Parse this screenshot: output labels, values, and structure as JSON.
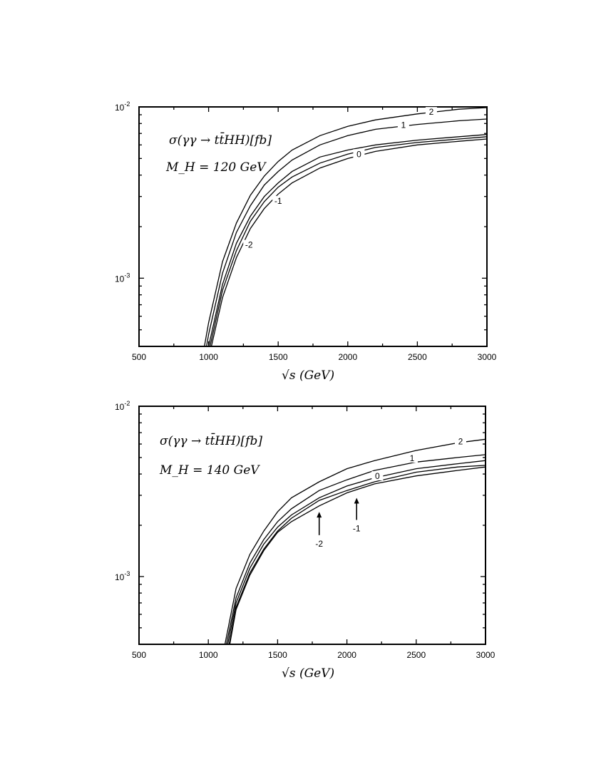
{
  "chart_data": [
    {
      "type": "line",
      "title": "",
      "xlabel": "√s (GeV)",
      "ylabel": "",
      "xlim": [
        500,
        3000
      ],
      "ylim": [
        0.0004,
        0.01
      ],
      "yscale": "log",
      "grid": false,
      "xticks": [
        "500",
        "1000",
        "1500",
        "2000",
        "2500",
        "3000"
      ],
      "yticks": [
        {
          "base": "10",
          "exp": "-2",
          "value": 0.01
        },
        {
          "base": "10",
          "exp": "-3",
          "value": 0.001
        }
      ],
      "annotations": [
        "σ(γγ → tt̄HH)[fb]",
        "M_H = 120 GeV"
      ],
      "series": [
        {
          "name": "2",
          "label_at": [
            2600,
            0.00925
          ],
          "x": [
            970,
            1000,
            1100,
            1200,
            1300,
            1400,
            1500,
            1600,
            1800,
            2000,
            2200,
            2500,
            2800,
            3000
          ],
          "y": [
            0.0004,
            0.00055,
            0.00125,
            0.0021,
            0.00305,
            0.00395,
            0.0048,
            0.0056,
            0.0068,
            0.0077,
            0.0084,
            0.0091,
            0.0097,
            0.0099
          ]
        },
        {
          "name": "1",
          "label_at": [
            2400,
            0.00775
          ],
          "x": [
            985,
            1000,
            1100,
            1200,
            1300,
            1400,
            1500,
            1600,
            1800,
            2000,
            2200,
            2500,
            2800,
            3000
          ],
          "y": [
            0.0004,
            0.00047,
            0.00107,
            0.00185,
            0.00265,
            0.0035,
            0.0042,
            0.0049,
            0.006,
            0.0068,
            0.0074,
            0.0079,
            0.0083,
            0.0085
          ]
        },
        {
          "name": "0",
          "label_at": [
            2080,
            0.00525
          ],
          "x": [
            1000,
            1100,
            1200,
            1300,
            1400,
            1500,
            1600,
            1800,
            2000,
            2200,
            2500,
            2800,
            3000
          ],
          "y": [
            0.0004,
            0.00092,
            0.0016,
            0.0023,
            0.003,
            0.0036,
            0.0042,
            0.0051,
            0.0056,
            0.006,
            0.0064,
            0.0067,
            0.0069
          ]
        },
        {
          "name": "-1",
          "label_at": [
            1500,
            0.0028
          ],
          "x": [
            1010,
            1100,
            1200,
            1300,
            1400,
            1500,
            1600,
            1800,
            2000,
            2200,
            2500,
            2800,
            3000
          ],
          "y": [
            0.0004,
            0.00085,
            0.00145,
            0.00215,
            0.0028,
            0.0034,
            0.0039,
            0.0047,
            0.0053,
            0.0058,
            0.0062,
            0.0065,
            0.0067
          ]
        },
        {
          "name": "-2",
          "label_at": [
            1290,
            0.00155
          ],
          "x": [
            1020,
            1100,
            1200,
            1300,
            1400,
            1500,
            1600,
            1800,
            2000,
            2200,
            2500,
            2800,
            3000
          ],
          "y": [
            0.0004,
            0.00077,
            0.00132,
            0.00195,
            0.00255,
            0.0031,
            0.0036,
            0.0044,
            0.005,
            0.0055,
            0.006,
            0.0063,
            0.0065
          ]
        }
      ]
    },
    {
      "type": "line",
      "title": "",
      "xlabel": "√s (GeV)",
      "ylabel": "",
      "xlim": [
        500,
        3000
      ],
      "ylim": [
        0.0004,
        0.01
      ],
      "yscale": "log",
      "grid": false,
      "xticks": [
        "500",
        "1000",
        "1500",
        "2000",
        "2500",
        "3000"
      ],
      "yticks": [
        {
          "base": "10",
          "exp": "-2",
          "value": 0.01
        },
        {
          "base": "10",
          "exp": "-3",
          "value": 0.001
        }
      ],
      "annotations": [
        "σ(γγ → tt̄HH)[fb]",
        "M_H = 140 GeV"
      ],
      "arrows": [
        {
          "label": "-2",
          "x": 1800,
          "y_tip": 0.0024,
          "y_tail": 0.00175
        },
        {
          "label": "-1",
          "x": 2070,
          "y_tip": 0.0029,
          "y_tail": 0.00215
        }
      ],
      "series": [
        {
          "name": "2",
          "label_at": [
            2820,
            0.00615
          ],
          "x": [
            1120,
            1200,
            1300,
            1400,
            1500,
            1600,
            1800,
            2000,
            2200,
            2500,
            2800,
            3000
          ],
          "y": [
            0.0004,
            0.00085,
            0.00135,
            0.00185,
            0.0024,
            0.0029,
            0.0036,
            0.0043,
            0.0048,
            0.0055,
            0.0061,
            0.0064
          ]
        },
        {
          "name": "1",
          "label_at": [
            2470,
            0.0049
          ],
          "x": [
            1130,
            1200,
            1300,
            1400,
            1500,
            1600,
            1800,
            2000,
            2200,
            2500,
            2800,
            3000
          ],
          "y": [
            0.0004,
            0.00075,
            0.0012,
            0.00165,
            0.0021,
            0.0025,
            0.0032,
            0.0037,
            0.0042,
            0.0047,
            0.005,
            0.0052
          ]
        },
        {
          "name": "0",
          "label_at": [
            2220,
            0.00385
          ],
          "x": [
            1140,
            1200,
            1300,
            1400,
            1500,
            1600,
            1800,
            2000,
            2200,
            2500,
            2800,
            3000
          ],
          "y": [
            0.0004,
            0.0007,
            0.00112,
            0.00155,
            0.00195,
            0.0023,
            0.0029,
            0.0034,
            0.0038,
            0.0043,
            0.0046,
            0.0048
          ]
        },
        {
          "name": "-1",
          "label_at": [
            2070,
            0.0017
          ],
          "x": [
            1150,
            1200,
            1300,
            1400,
            1500,
            1600,
            1800,
            2000,
            2200,
            2500,
            2800,
            3000
          ],
          "y": [
            0.0004,
            0.00066,
            0.00105,
            0.00145,
            0.00185,
            0.0022,
            0.0028,
            0.0032,
            0.0036,
            0.0041,
            0.0044,
            0.0045
          ]
        },
        {
          "name": "-2",
          "label_at": [
            1800,
            0.00135
          ],
          "x": [
            1155,
            1200,
            1300,
            1400,
            1500,
            1600,
            1800,
            2000,
            2200,
            2500,
            2800,
            3000
          ],
          "y": [
            0.0004,
            0.00064,
            0.00102,
            0.00142,
            0.00182,
            0.0021,
            0.0026,
            0.0031,
            0.0035,
            0.0039,
            0.0042,
            0.0044
          ]
        }
      ]
    }
  ]
}
